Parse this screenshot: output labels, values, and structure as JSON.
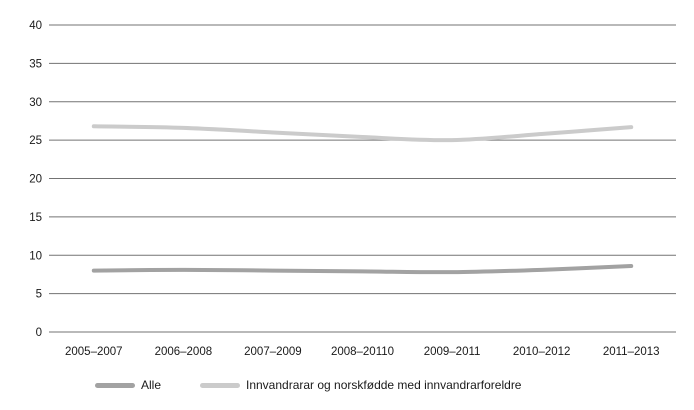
{
  "chart_data": {
    "type": "line",
    "title": "",
    "xlabel": "",
    "ylabel": "",
    "categories": [
      "2005–2007",
      "2006–2008",
      "2007–2009",
      "2008–20110",
      "2009–2011",
      "2010–2012",
      "2011–2013"
    ],
    "series": [
      {
        "name": "Alle",
        "color": "#a2a2a2",
        "values": [
          8.0,
          8.1,
          8.0,
          7.9,
          7.8,
          8.1,
          8.6
        ]
      },
      {
        "name": "Innvandrarar og norskfødde med innvandrarforeldre",
        "color": "#cbcbcb",
        "values": [
          26.8,
          26.6,
          26.0,
          25.4,
          25.0,
          25.8,
          26.7
        ]
      }
    ],
    "ylim": [
      0,
      40
    ],
    "ytick_step": 5,
    "yticks": [
      0,
      5,
      10,
      15,
      20,
      25,
      30,
      35,
      40
    ],
    "grid": "horizontal",
    "legend_position": "bottom-left",
    "line_smoothing": true,
    "colors": {
      "gridline": "#737373",
      "tick_text": "#1a1a1a",
      "background": "#ffffff"
    }
  }
}
